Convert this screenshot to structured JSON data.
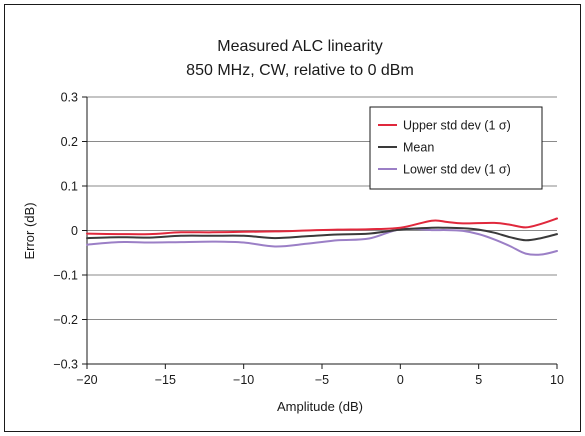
{
  "chart_data": {
    "type": "line",
    "title": "Measured ALC linearity",
    "subtitle": "850 MHz, CW, relative to 0 dBm",
    "xlabel": "Amplitude (dB)",
    "ylabel": "Error (dB)",
    "xlim": [
      -20,
      10
    ],
    "ylim": [
      -0.3,
      0.3
    ],
    "x_ticks": [
      -20,
      -15,
      -10,
      -5,
      0,
      5,
      10
    ],
    "x_tick_labels": [
      "−20",
      "−15",
      "−10",
      "−5",
      "0",
      "5",
      "10"
    ],
    "y_ticks": [
      0.3,
      0.2,
      0.1,
      0,
      -0.1,
      -0.2,
      -0.3
    ],
    "y_tick_labels": [
      "0.3",
      "0.2",
      "0.1",
      "0",
      "−0.1",
      "−0.2",
      "−0.3"
    ],
    "grid": "horizontal",
    "legend_position": "top-right",
    "series": [
      {
        "name": "Upper std dev (1 σ)",
        "color": "#e0283c",
        "points": [
          [
            -20,
            -0.007
          ],
          [
            -18,
            -0.008
          ],
          [
            -16,
            -0.008
          ],
          [
            -14,
            -0.004
          ],
          [
            -12,
            -0.004
          ],
          [
            -10,
            -0.003
          ],
          [
            -8,
            -0.002
          ],
          [
            -6,
            0.0
          ],
          [
            -4,
            0.002
          ],
          [
            -2,
            0.003
          ],
          [
            0,
            0.006
          ],
          [
            2,
            0.022
          ],
          [
            3,
            0.019
          ],
          [
            4,
            0.016
          ],
          [
            6,
            0.017
          ],
          [
            7,
            0.013
          ],
          [
            8,
            0.007
          ],
          [
            9,
            0.015
          ],
          [
            10,
            0.027
          ]
        ]
      },
      {
        "name": "Mean",
        "color": "#3a3a3a",
        "points": [
          [
            -20,
            -0.017
          ],
          [
            -18,
            -0.015
          ],
          [
            -16,
            -0.016
          ],
          [
            -14,
            -0.012
          ],
          [
            -12,
            -0.012
          ],
          [
            -10,
            -0.012
          ],
          [
            -8,
            -0.017
          ],
          [
            -6,
            -0.013
          ],
          [
            -4,
            -0.009
          ],
          [
            -2,
            -0.007
          ],
          [
            0,
            0.002
          ],
          [
            2,
            0.006
          ],
          [
            3,
            0.006
          ],
          [
            4,
            0.005
          ],
          [
            5,
            0.002
          ],
          [
            6,
            -0.005
          ],
          [
            7,
            -0.015
          ],
          [
            8,
            -0.022
          ],
          [
            9,
            -0.017
          ],
          [
            10,
            -0.008
          ]
        ]
      },
      {
        "name": "Lower std dev (1 σ)",
        "color": "#9b7fc6",
        "points": [
          [
            -20,
            -0.032
          ],
          [
            -18,
            -0.026
          ],
          [
            -16,
            -0.027
          ],
          [
            -14,
            -0.026
          ],
          [
            -12,
            -0.025
          ],
          [
            -10,
            -0.027
          ],
          [
            -8,
            -0.036
          ],
          [
            -6,
            -0.03
          ],
          [
            -4,
            -0.022
          ],
          [
            -2,
            -0.018
          ],
          [
            0,
            0.003
          ],
          [
            2,
            0.001
          ],
          [
            3,
            0.001
          ],
          [
            4,
            -0.001
          ],
          [
            5,
            -0.008
          ],
          [
            6,
            -0.02
          ],
          [
            7,
            -0.035
          ],
          [
            8,
            -0.052
          ],
          [
            9,
            -0.054
          ],
          [
            10,
            -0.046
          ]
        ]
      }
    ]
  }
}
